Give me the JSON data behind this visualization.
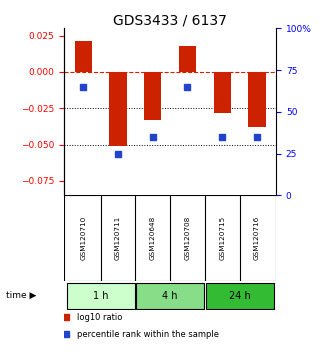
{
  "title": "GDS3433 / 6137",
  "samples": [
    "GSM120710",
    "GSM120711",
    "GSM120648",
    "GSM120708",
    "GSM120715",
    "GSM120716"
  ],
  "log10_ratio": [
    0.021,
    -0.051,
    -0.033,
    0.018,
    -0.028,
    -0.038
  ],
  "percentile_rank": [
    65,
    25,
    35,
    65,
    35,
    35
  ],
  "ylim_left": [
    -0.085,
    0.03
  ],
  "ylim_right": [
    0,
    100
  ],
  "yticks_left": [
    0.025,
    0.0,
    -0.025,
    -0.05,
    -0.075
  ],
  "yticks_right": [
    100,
    75,
    50,
    25,
    0
  ],
  "time_groups": [
    {
      "label": "1 h",
      "samples": [
        0,
        1
      ],
      "color": "#ccffcc"
    },
    {
      "label": "4 h",
      "samples": [
        2,
        3
      ],
      "color": "#88dd88"
    },
    {
      "label": "24 h",
      "samples": [
        4,
        5
      ],
      "color": "#33bb33"
    }
  ],
  "bar_color": "#cc2200",
  "point_color": "#2244cc",
  "zero_line_color": "#cc2200",
  "grid_color": "#000000",
  "bar_width": 0.5,
  "legend_items": [
    {
      "color": "#cc2200",
      "label": "log10 ratio"
    },
    {
      "color": "#2244cc",
      "label": "percentile rank within the sample"
    }
  ],
  "background_color": "#ffffff",
  "sample_label_bg": "#cccccc"
}
